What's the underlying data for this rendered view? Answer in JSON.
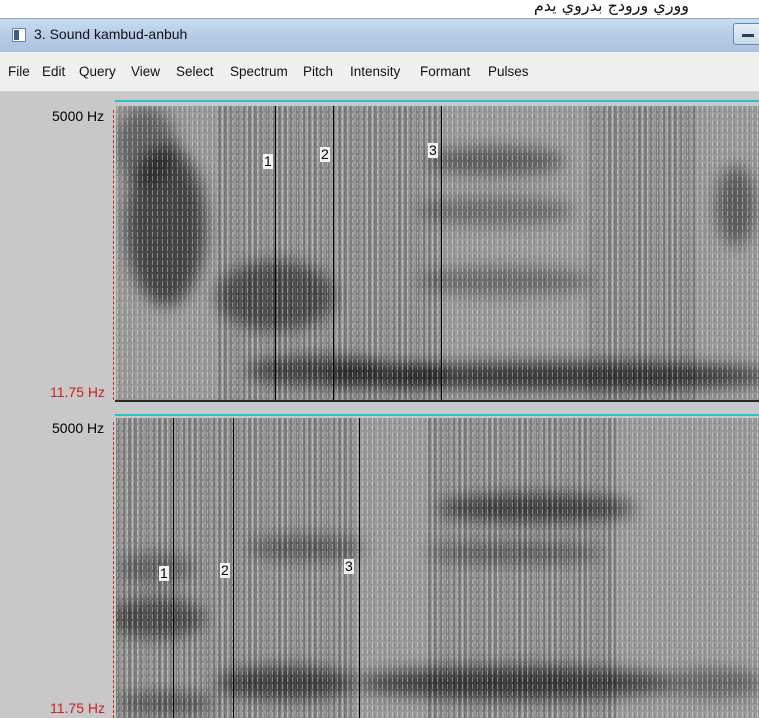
{
  "top_text": "ووري  ورودج  بدروي  يدم",
  "window": {
    "title": "3. Sound kambud-anbuh"
  },
  "menu": [
    "File",
    "Edit",
    "Query",
    "View",
    "Select",
    "Spectrum",
    "Pitch",
    "Intensity",
    "Formant",
    "Pulses"
  ],
  "panels": [
    {
      "freq_max": "5000 Hz",
      "freq_min": "11.75 Hz",
      "markers": [
        "1",
        "2",
        "3"
      ]
    },
    {
      "freq_max": "5000 Hz",
      "freq_min": "11.75 Hz",
      "markers": [
        "1",
        "2",
        "3"
      ]
    }
  ],
  "colors": {
    "title_bar": "#b7cde6",
    "menu_bar": "#f0f0f0",
    "margin": "#c8c8c8",
    "selection_line": "#27c3c3",
    "min_freq_label": "#cc2222"
  }
}
